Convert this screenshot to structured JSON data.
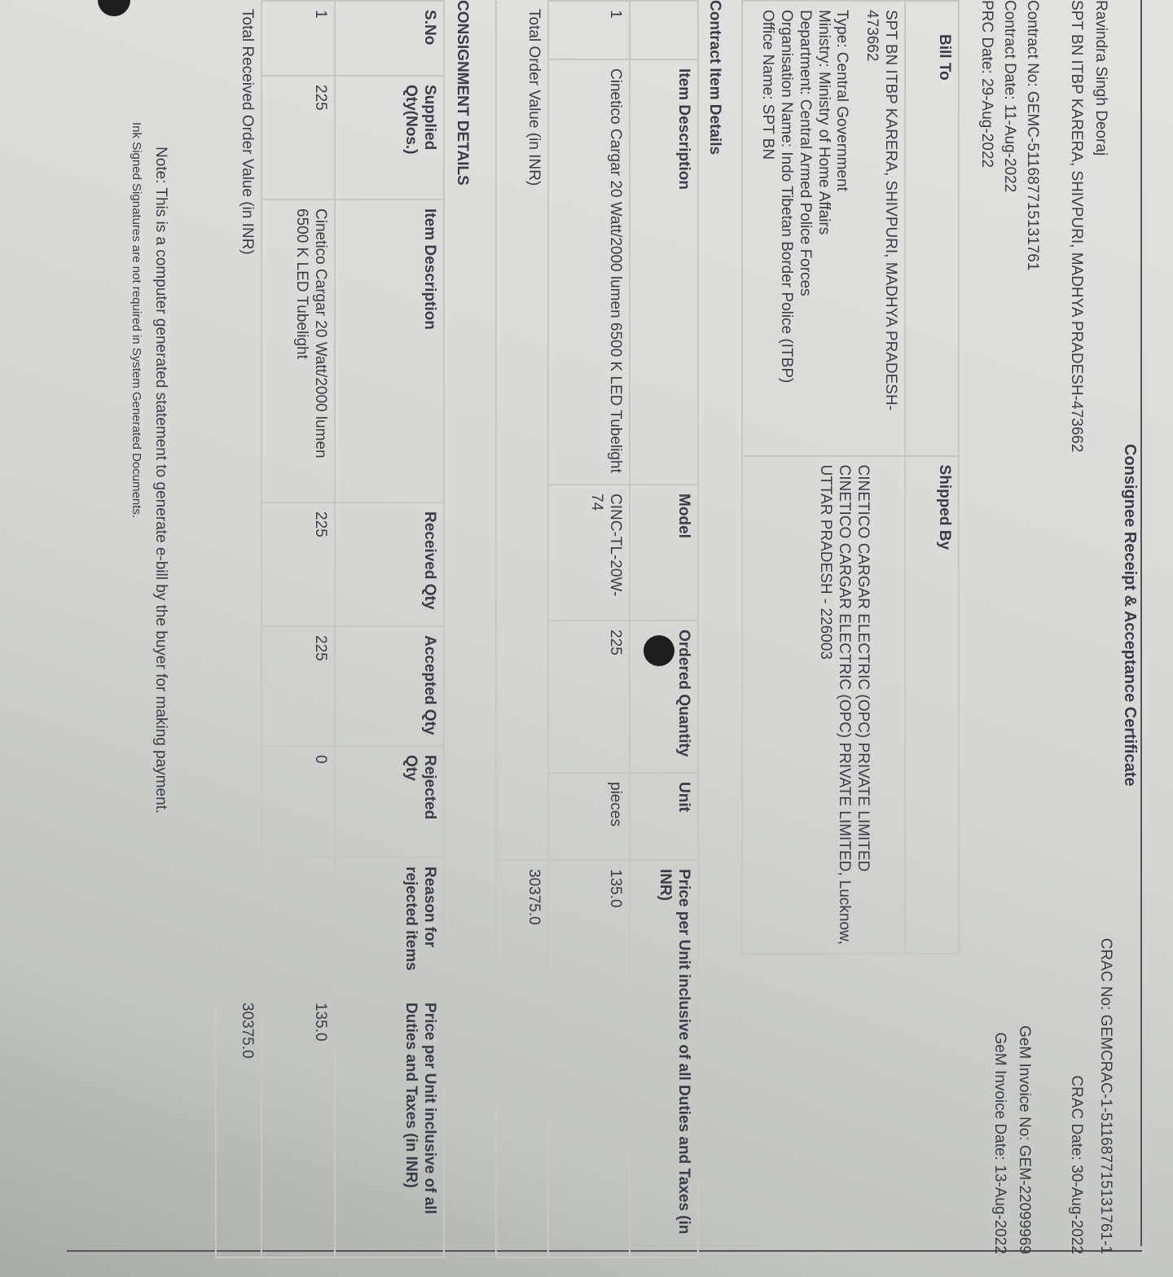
{
  "title": "Consignee Receipt & Acceptance Certificate",
  "header_left": {
    "name": "Ravindra Singh Deoraj",
    "address": "SPT BN ITBP KARERA, SHIVPURI, MADHYA PRADESH-473662",
    "contract_no": "Contract No: GEMC-511687715131761",
    "contract_date": "Contract Date: 11-Aug-2022",
    "prc_date": "PRC Date: 29-Aug-2022"
  },
  "header_right": {
    "crac_no": "CRAC No: GEMCRAC-1-511687715131761-1",
    "crac_date": "CRAC Date: 30-Aug-2022",
    "invoice_no": "GeM Invoice No: GEM-22099969",
    "invoice_date": "GeM Invoice Date: 13-Aug-2022"
  },
  "parties": {
    "bill_to_label": "Bill To",
    "shipped_by_label": "Shipped By",
    "bill_to_lines": [
      "SPT BN ITBP KARERA, SHIVPURI, MADHYA PRADESH-473662",
      "Type: Central Government",
      "Ministry: Ministry of Home Affairs",
      "Department: Central Armed Police Forces",
      "Organisation Name: Indo Tibetan Border Police (ITBP)",
      "Office Name: SPT BN"
    ],
    "shipped_by_lines": [
      "CINETICO CARGAR ELECTRIC (OPC) PRIVATE LIMITED",
      "CINETICO CARGAR ELECTRIC (OPC) PRIVATE LIMITED, Lucknow,",
      "UTTAR PRADESH - 226003"
    ]
  },
  "contract_items": {
    "section_label": "Contract Item Details",
    "headers": [
      "",
      "Item Description",
      "Model",
      "Ordered Quantity",
      "Unit",
      "Price per Unit inclusive of all Duties and Taxes (in INR)"
    ],
    "rows": [
      [
        "1",
        "Cinetico Cargar 20 Watt/2000 lumen 6500 K LED Tubelight",
        "CINC-TL-20W-74",
        "225",
        "pieces",
        "135.0"
      ]
    ],
    "total_label": "Total Order Value (in INR)",
    "total_value": "30375.0"
  },
  "consignment": {
    "section_label": "CONSIGNMENT DETAILS",
    "headers": [
      "S.No",
      "Supplied Qty(Nos.)",
      "Item Description",
      "Received Qty",
      "Accepted Qty",
      "Rejected Qty",
      "Reason for rejected items",
      "Price per Unit inclusive of all Duties and Taxes (in INR)"
    ],
    "rows": [
      [
        "1",
        "225",
        "Cinetico Cargar 20 Watt/2000 lumen 6500 K LED Tubelight",
        "225",
        "225",
        "0",
        "",
        "135.0"
      ]
    ],
    "total_label": "Total Received Order Value (in INR)",
    "total_value": "30375.0"
  },
  "note": "Note: This is a computer generated statement to generate e-bill by the buyer for making payment.",
  "note2": "Ink Signed Signatures are not required in System Generated Documents."
}
